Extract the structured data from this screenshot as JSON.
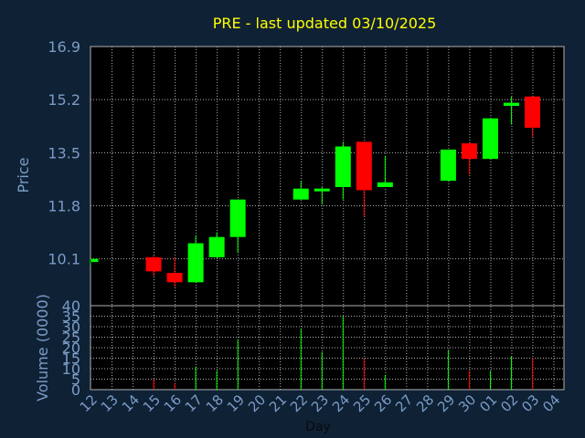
{
  "chart_data": {
    "type": "candlestick",
    "title": "PRE - last updated 03/10/2025",
    "xlabel": "Day",
    "price_panel": {
      "ylabel": "Price",
      "ylim": [
        8.6,
        16.9
      ],
      "yticks": [
        "16.9",
        "15.2",
        "13.5",
        "11.8",
        "10.1"
      ],
      "ytick_values": [
        16.9,
        15.2,
        13.5,
        11.8,
        10.1
      ]
    },
    "volume_panel": {
      "ylabel": "Volume (0000)",
      "ylim": [
        0,
        40
      ],
      "yticks": [
        "40",
        "35",
        "30",
        "25",
        "20",
        "15",
        "10",
        "5",
        "0"
      ],
      "ytick_values": [
        40,
        35,
        30,
        25,
        20,
        15,
        10,
        5,
        0
      ]
    },
    "x_ticks": [
      "12",
      "13",
      "14",
      "15",
      "16",
      "17",
      "18",
      "19",
      "20",
      "21",
      "22",
      "23",
      "24",
      "25",
      "26",
      "27",
      "28",
      "29",
      "30",
      "01",
      "02",
      "03",
      "04"
    ],
    "grid": true,
    "candles": [
      {
        "day": "12",
        "open": 10.0,
        "high": 10.1,
        "low": 9.9,
        "close": 10.1,
        "volume": 0
      },
      {
        "day": "15",
        "open": 10.15,
        "high": 10.2,
        "low": 9.55,
        "close": 9.7,
        "volume": 5
      },
      {
        "day": "16",
        "open": 9.65,
        "high": 10.15,
        "low": 9.2,
        "close": 9.35,
        "volume": 3
      },
      {
        "day": "17",
        "open": 9.35,
        "high": 10.85,
        "low": 9.35,
        "close": 10.6,
        "volume": 11
      },
      {
        "day": "18",
        "open": 10.15,
        "high": 10.95,
        "low": 10.15,
        "close": 10.8,
        "volume": 9
      },
      {
        "day": "19",
        "open": 10.8,
        "high": 12.0,
        "low": 10.3,
        "close": 12.0,
        "volume": 24
      },
      {
        "day": "22",
        "open": 12.0,
        "high": 12.6,
        "low": 12.0,
        "close": 12.35,
        "volume": 29
      },
      {
        "day": "23",
        "open": 12.35,
        "high": 12.4,
        "low": 11.85,
        "close": 12.35,
        "volume": 18
      },
      {
        "day": "24",
        "open": 12.4,
        "high": 13.85,
        "low": 12.0,
        "close": 13.7,
        "volume": 35
      },
      {
        "day": "25",
        "open": 13.85,
        "high": 13.85,
        "low": 11.45,
        "close": 12.3,
        "volume": 15
      },
      {
        "day": "26",
        "open": 12.4,
        "high": 13.4,
        "low": 12.4,
        "close": 12.55,
        "volume": 7
      },
      {
        "day": "29",
        "open": 12.6,
        "high": 13.6,
        "low": 12.6,
        "close": 13.6,
        "volume": 19
      },
      {
        "day": "30",
        "open": 13.8,
        "high": 13.8,
        "low": 12.8,
        "close": 13.3,
        "volume": 9
      },
      {
        "day": "01",
        "open": 13.3,
        "high": 14.6,
        "low": 13.3,
        "close": 14.6,
        "volume": 9
      },
      {
        "day": "02",
        "open": 15.0,
        "high": 15.3,
        "low": 14.4,
        "close": 15.1,
        "volume": 16
      },
      {
        "day": "03",
        "open": 15.3,
        "high": 15.3,
        "low": 14.0,
        "close": 14.3,
        "volume": 15
      }
    ],
    "colors": {
      "background": "#0f2135",
      "plot_area": "#000000",
      "title": "#ffff00",
      "axis_text": "#7a9cc6",
      "up": "#00ff00",
      "down": "#ff0000",
      "grid": "#b0b0b0",
      "frame": "#b0b0b0"
    }
  }
}
